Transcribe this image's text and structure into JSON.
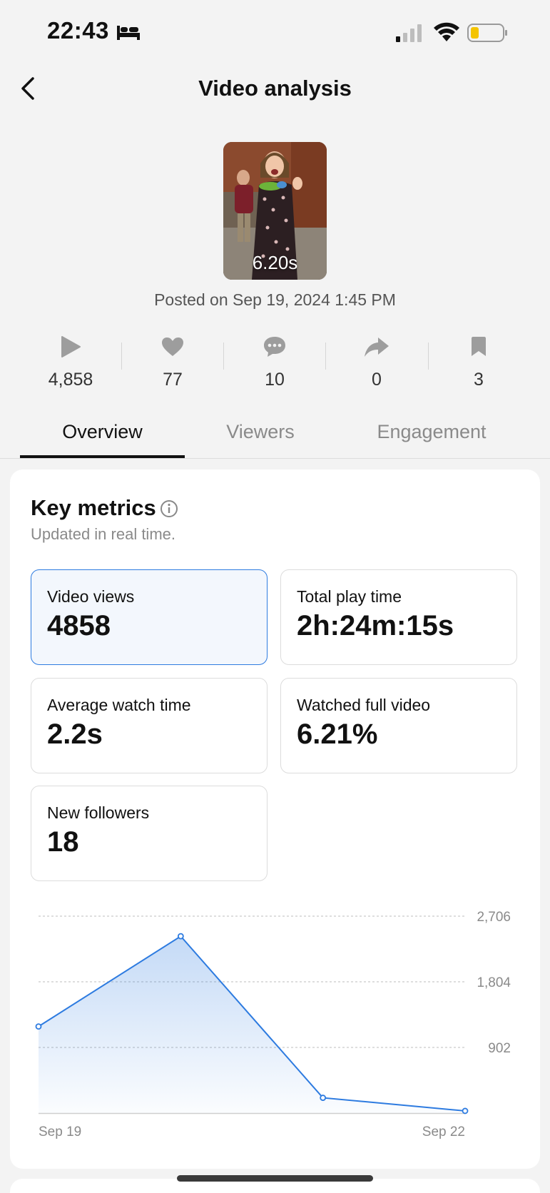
{
  "status_bar": {
    "time": "22:43"
  },
  "header": {
    "title": "Video analysis"
  },
  "video": {
    "duration": "6.20s",
    "posted": "Posted on Sep 19, 2024 1:45 PM"
  },
  "stats": [
    {
      "icon": "play-icon",
      "value": "4,858"
    },
    {
      "icon": "heart-icon",
      "value": "77"
    },
    {
      "icon": "comment-icon",
      "value": "10"
    },
    {
      "icon": "share-icon",
      "value": "0"
    },
    {
      "icon": "bookmark-icon",
      "value": "3"
    }
  ],
  "tabs": [
    {
      "label": "Overview",
      "active": true
    },
    {
      "label": "Viewers",
      "active": false
    },
    {
      "label": "Engagement",
      "active": false
    }
  ],
  "key_metrics": {
    "title": "Key metrics",
    "subtitle": "Updated in real time.",
    "items": [
      {
        "label": "Video views",
        "value": "4858",
        "selected": true
      },
      {
        "label": "Total play time",
        "value": "2h:24m:15s",
        "selected": false
      },
      {
        "label": "Average watch time",
        "value": "2.2s",
        "selected": false
      },
      {
        "label": "Watched full video",
        "value": "6.21%",
        "selected": false
      },
      {
        "label": "New followers",
        "value": "18",
        "selected": false
      }
    ]
  },
  "colors": {
    "accent": "#2d7be0",
    "text": "#111111",
    "muted": "#8a8a8a"
  },
  "chart_data": {
    "type": "area",
    "x": [
      "Sep 19",
      "Sep 20",
      "Sep 21",
      "Sep 22"
    ],
    "x_tick_labels": [
      "Sep 19",
      "Sep 22"
    ],
    "series": [
      {
        "values": [
          1190,
          2430,
          210,
          30
        ]
      }
    ],
    "y_ticks": [
      "902",
      "1,804",
      "2,706"
    ],
    "ylim": [
      0,
      2706
    ],
    "grid": true
  }
}
